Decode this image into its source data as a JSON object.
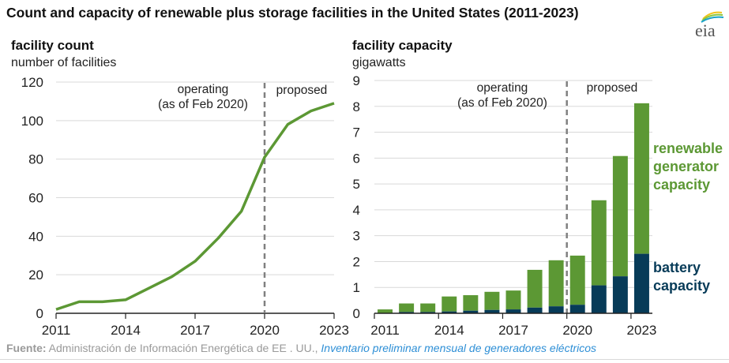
{
  "title": "Count and capacity of renewable plus storage facilities in the United States (2011-2023)",
  "logo": {
    "text": "eia",
    "icon": "eia-logo-icon"
  },
  "source": {
    "label": "Fuente:",
    "text": " Administración de Información Energética de EE . UU., ",
    "link": "Inventario preliminar mensual de generadores eléctricos"
  },
  "colors": {
    "green": "#5c9834",
    "navy": "#073b58",
    "grid": "#d9d9d9",
    "divider": "#808080",
    "source_link": "#2e8fd6"
  },
  "chart_data": [
    {
      "type": "line",
      "title": "facility count",
      "subtitle": "number of facilities",
      "xlabel": "",
      "ylabel": "number of facilities",
      "x": [
        2011,
        2012,
        2013,
        2014,
        2015,
        2016,
        2017,
        2018,
        2019,
        2020,
        2021,
        2022,
        2023
      ],
      "series": [
        {
          "name": "facility count",
          "values": [
            2,
            6,
            6,
            7,
            13,
            19,
            27,
            39,
            53,
            81,
            98,
            105,
            109
          ]
        }
      ],
      "xticks": [
        "2011",
        "2014",
        "2017",
        "2020",
        "2023"
      ],
      "yticks": [
        "0",
        "20",
        "40",
        "60",
        "80",
        "100",
        "120"
      ],
      "ylim": [
        0,
        120
      ],
      "xlim": [
        2011,
        2023
      ],
      "grid": true,
      "divider_x": 2020,
      "annotations": {
        "operating_line1": "operating",
        "operating_line2": "(as of Feb 2020)",
        "proposed": "proposed"
      }
    },
    {
      "type": "bar",
      "stacked": true,
      "title": "facility capacity",
      "subtitle": "gigawatts",
      "xlabel": "",
      "ylabel": "gigawatts",
      "categories": [
        "2011",
        "2012",
        "2013",
        "2014",
        "2015",
        "2016",
        "2017",
        "2018",
        "2019",
        "2020",
        "2021",
        "2022",
        "2023"
      ],
      "series": [
        {
          "name": "battery capacity",
          "values": [
            0.01,
            0.05,
            0.05,
            0.07,
            0.1,
            0.13,
            0.15,
            0.22,
            0.27,
            0.33,
            1.08,
            1.43,
            2.3
          ]
        },
        {
          "name": "renewable generator capacity",
          "values": [
            0.14,
            0.33,
            0.33,
            0.58,
            0.6,
            0.7,
            0.73,
            1.46,
            1.78,
            1.9,
            3.29,
            4.65,
            5.82
          ]
        }
      ],
      "xticks": [
        "2011",
        "2014",
        "2017",
        "2020",
        "2023"
      ],
      "yticks": [
        "0",
        "1",
        "2",
        "3",
        "4",
        "5",
        "6",
        "7",
        "8",
        "9"
      ],
      "ylim": [
        0,
        9
      ],
      "grid": true,
      "divider_between": [
        "2019",
        "2020"
      ],
      "annotations": {
        "operating_line1": "operating",
        "operating_line2": "(as of Feb 2020)",
        "proposed": "proposed"
      },
      "legend": {
        "placement": "right",
        "renewable": [
          "renewable",
          "generator",
          "capacity"
        ],
        "battery": [
          "battery",
          "capacity"
        ]
      }
    }
  ]
}
